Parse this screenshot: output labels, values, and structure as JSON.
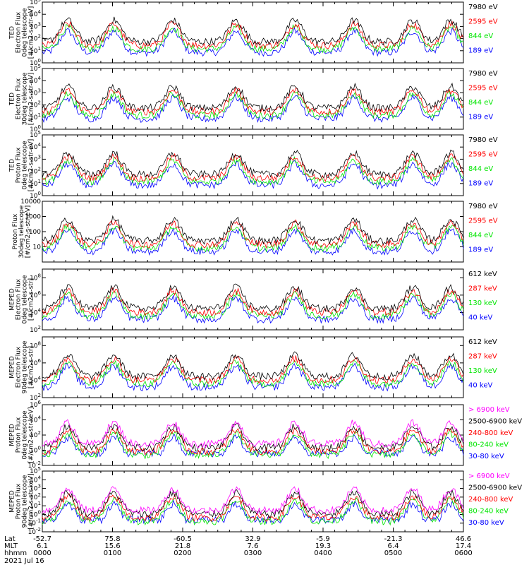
{
  "colors": {
    "black": "#000000",
    "blue": "#0000ff",
    "red": "#ff0000",
    "green": "#00e600",
    "magenta": "#ff00ff",
    "axis": "#000000"
  },
  "bottom_axis": {
    "rows": [
      {
        "label": "Lat",
        "values": [
          "-52.7",
          "75.8",
          "-60.5",
          "32.9",
          "-5.9",
          "-21.3",
          "46.6"
        ]
      },
      {
        "label": "MLT",
        "values": [
          "6.1",
          "15.6",
          "21.8",
          "7.6",
          "19.3",
          "6.4",
          "17.4"
        ]
      },
      {
        "label": "hhmm",
        "values": [
          "0000",
          "0100",
          "0200",
          "0300",
          "0400",
          "0500",
          "0600"
        ]
      }
    ],
    "date": "2021 Jul 16"
  },
  "chart_data": [
    {
      "type": "line",
      "instrument": "TED",
      "ylabel": [
        "TED",
        "Electron Flux",
        "0deg telescope",
        "[#/cm2-s-str-eV]"
      ],
      "y_scale": "log",
      "ylim": [
        1,
        100000
      ],
      "ticks": [
        {
          "e": 0
        },
        {
          "e": 1
        },
        {
          "e": 2
        },
        {
          "e": 3
        },
        {
          "e": 4
        },
        {
          "e": 5
        }
      ],
      "x": [
        "0000",
        "0100",
        "0200",
        "0300",
        "0400",
        "0500",
        "0600"
      ],
      "series": [
        {
          "name": "7980 eV",
          "color": "#000000"
        },
        {
          "name": "2595 eV",
          "color": "#ff0000"
        },
        {
          "name": "844 eV",
          "color": "#00e600"
        },
        {
          "name": "189 eV",
          "color": "#0000ff"
        }
      ]
    },
    {
      "type": "line",
      "instrument": "TED",
      "ylabel": [
        "TED",
        "Electron Flux",
        "30deg telescope",
        "[#/cm2-s-str-eV]"
      ],
      "y_scale": "log",
      "ylim": [
        1,
        100000
      ],
      "ticks": [
        {
          "e": 0
        },
        {
          "e": 1
        },
        {
          "e": 2
        },
        {
          "e": 3
        },
        {
          "e": 4
        },
        {
          "e": 5
        }
      ],
      "x": [
        "0000",
        "0100",
        "0200",
        "0300",
        "0400",
        "0500",
        "0600"
      ],
      "series": [
        {
          "name": "7980 eV",
          "color": "#000000"
        },
        {
          "name": "2595 eV",
          "color": "#ff0000"
        },
        {
          "name": "844 eV",
          "color": "#00e600"
        },
        {
          "name": "189 eV",
          "color": "#0000ff"
        }
      ]
    },
    {
      "type": "line",
      "instrument": "TED",
      "ylabel": [
        "TED",
        "Proton Flux",
        "0deg telescope",
        "[#/cm2-s-str-eV]"
      ],
      "y_scale": "log",
      "ylim": [
        1,
        100000
      ],
      "ticks": [
        {
          "e": 0
        },
        {
          "e": 1
        },
        {
          "e": 2
        },
        {
          "e": 3
        },
        {
          "e": 4
        },
        {
          "e": 5
        }
      ],
      "x": [
        "0000",
        "0100",
        "0200",
        "0300",
        "0400",
        "0500",
        "0600"
      ],
      "series": [
        {
          "name": "7980 eV",
          "color": "#000000"
        },
        {
          "name": "2595 eV",
          "color": "#ff0000"
        },
        {
          "name": "844 eV",
          "color": "#00e600"
        },
        {
          "name": "189 eV",
          "color": "#0000ff"
        }
      ]
    },
    {
      "type": "line",
      "instrument": "TED",
      "ylabel": [
        "Proton Flux",
        "30deg telescope",
        "[#/cm2-s-str-eV]"
      ],
      "y_scale": "log",
      "ylim": [
        1,
        10000
      ],
      "ticks": [
        {
          "t": "10"
        },
        {
          "t": "100"
        },
        {
          "t": "1000"
        },
        {
          "t": "10000"
        }
      ],
      "tick_vals": [
        10,
        100,
        1000,
        10000
      ],
      "x": [
        "0000",
        "0100",
        "0200",
        "0300",
        "0400",
        "0500",
        "0600"
      ],
      "series": [
        {
          "name": "7980 eV",
          "color": "#000000"
        },
        {
          "name": "2595 eV",
          "color": "#ff0000"
        },
        {
          "name": "844 eV",
          "color": "#00e600"
        },
        {
          "name": "189 eV",
          "color": "#0000ff"
        }
      ]
    },
    {
      "type": "line",
      "instrument": "MEPED",
      "ylabel": [
        "MEPED",
        "Electron Flux",
        "0deg telescope",
        "[#/cm2-s-str]"
      ],
      "y_scale": "log",
      "ylim": [
        100,
        1000000000
      ],
      "ticks": [
        {
          "e": 2
        },
        {
          "e": 4
        },
        {
          "e": 6
        },
        {
          "e": 8
        }
      ],
      "x": [
        "0000",
        "0100",
        "0200",
        "0300",
        "0400",
        "0500",
        "0600"
      ],
      "series": [
        {
          "name": "612 keV",
          "color": "#000000"
        },
        {
          "name": "287 keV",
          "color": "#ff0000"
        },
        {
          "name": "130 keV",
          "color": "#00e600"
        },
        {
          "name": "40 keV",
          "color": "#0000ff"
        }
      ]
    },
    {
      "type": "line",
      "instrument": "MEPED",
      "ylabel": [
        "MEPED",
        "Electron Flux",
        "90deg telescope",
        "[#/cm2-s-str]"
      ],
      "y_scale": "log",
      "ylim": [
        100,
        1000000000
      ],
      "ticks": [
        {
          "e": 2
        },
        {
          "e": 4
        },
        {
          "e": 6
        },
        {
          "e": 8
        }
      ],
      "x": [
        "0000",
        "0100",
        "0200",
        "0300",
        "0400",
        "0500",
        "0600"
      ],
      "series": [
        {
          "name": "612 keV",
          "color": "#000000"
        },
        {
          "name": "287 keV",
          "color": "#ff0000"
        },
        {
          "name": "130 keV",
          "color": "#00e600"
        },
        {
          "name": "40 keV",
          "color": "#0000ff"
        }
      ]
    },
    {
      "type": "line",
      "instrument": "MEPED",
      "ylabel": [
        "MEPED",
        "Proton Flux",
        "0deg telescope",
        "[#/cm2-s-str-keV]"
      ],
      "y_scale": "log",
      "ylim": [
        0.01,
        1000000
      ],
      "ticks": [
        {
          "e": -2
        },
        {
          "e": 0
        },
        {
          "e": 2
        },
        {
          "e": 4
        },
        {
          "e": 6
        }
      ],
      "x": [
        "0000",
        "0100",
        "0200",
        "0300",
        "0400",
        "0500",
        "0600"
      ],
      "series": [
        {
          "name": "> 6900 keV",
          "color": "#ff00ff"
        },
        {
          "name": "2500-6900 keV",
          "color": "#000000"
        },
        {
          "name": "240-800 keV",
          "color": "#ff0000"
        },
        {
          "name": "80-240 keV",
          "color": "#00e600"
        },
        {
          "name": "30-80 keV",
          "color": "#0000ff"
        }
      ]
    },
    {
      "type": "line",
      "instrument": "MEPED",
      "ylabel": [
        "MEPED",
        "Proton Flux",
        "90deg telescope",
        "[#/cm2-s-str-keV]"
      ],
      "y_scale": "log",
      "ylim": [
        0.01,
        100000
      ],
      "ticks": [
        {
          "e": -2
        },
        {
          "e": -1
        },
        {
          "e": 0
        },
        {
          "e": 1
        },
        {
          "e": 2
        },
        {
          "e": 3
        },
        {
          "e": 4
        },
        {
          "e": 5
        }
      ],
      "x": [
        "0000",
        "0100",
        "0200",
        "0300",
        "0400",
        "0500",
        "0600"
      ],
      "series": [
        {
          "name": "> 6900 keV",
          "color": "#ff00ff"
        },
        {
          "name": "2500-6900 keV",
          "color": "#000000"
        },
        {
          "name": "240-800 keV",
          "color": "#ff0000"
        },
        {
          "name": "80-240 keV",
          "color": "#00e600"
        },
        {
          "name": "30-80 keV",
          "color": "#0000ff"
        }
      ]
    }
  ]
}
